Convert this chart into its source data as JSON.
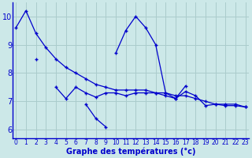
{
  "xlabel": "Graphe des températures (°c)",
  "background_color": "#cce8e8",
  "grid_color": "#aacccc",
  "line_color": "#0000cc",
  "hours": [
    0,
    1,
    2,
    3,
    4,
    5,
    6,
    7,
    8,
    9,
    10,
    11,
    12,
    13,
    14,
    15,
    16,
    17,
    18,
    19,
    20,
    21,
    22,
    23
  ],
  "line1_y": [
    9.6,
    10.2,
    9.4,
    8.9,
    8.5,
    8.2,
    8.0,
    7.8,
    7.6,
    7.5,
    7.4,
    7.4,
    7.4,
    7.4,
    7.3,
    7.3,
    7.2,
    7.2,
    7.1,
    7.0,
    6.9,
    6.9,
    6.9,
    6.8
  ],
  "line2_y": [
    null,
    null,
    8.5,
    null,
    null,
    null,
    null,
    null,
    null,
    null,
    8.7,
    9.5,
    10.0,
    9.6,
    9.0,
    7.3,
    7.1,
    7.55,
    null,
    null,
    null,
    null,
    null,
    null
  ],
  "line3_y": [
    null,
    null,
    null,
    null,
    7.5,
    7.1,
    7.5,
    7.3,
    7.15,
    7.3,
    7.3,
    7.2,
    7.3,
    7.3,
    7.3,
    7.2,
    7.1,
    7.35,
    7.2,
    6.85,
    6.9,
    6.85,
    6.85,
    6.8
  ],
  "line4_y": [
    null,
    null,
    null,
    null,
    null,
    null,
    null,
    6.9,
    6.4,
    6.1,
    null,
    null,
    null,
    null,
    null,
    null,
    null,
    null,
    null,
    null,
    null,
    null,
    null,
    null
  ],
  "ylim": [
    5.7,
    10.5
  ],
  "ytick_vals": [
    6,
    7,
    8,
    9,
    10
  ],
  "ytick_labels": [
    "6",
    "7",
    "8",
    "9",
    "10"
  ]
}
